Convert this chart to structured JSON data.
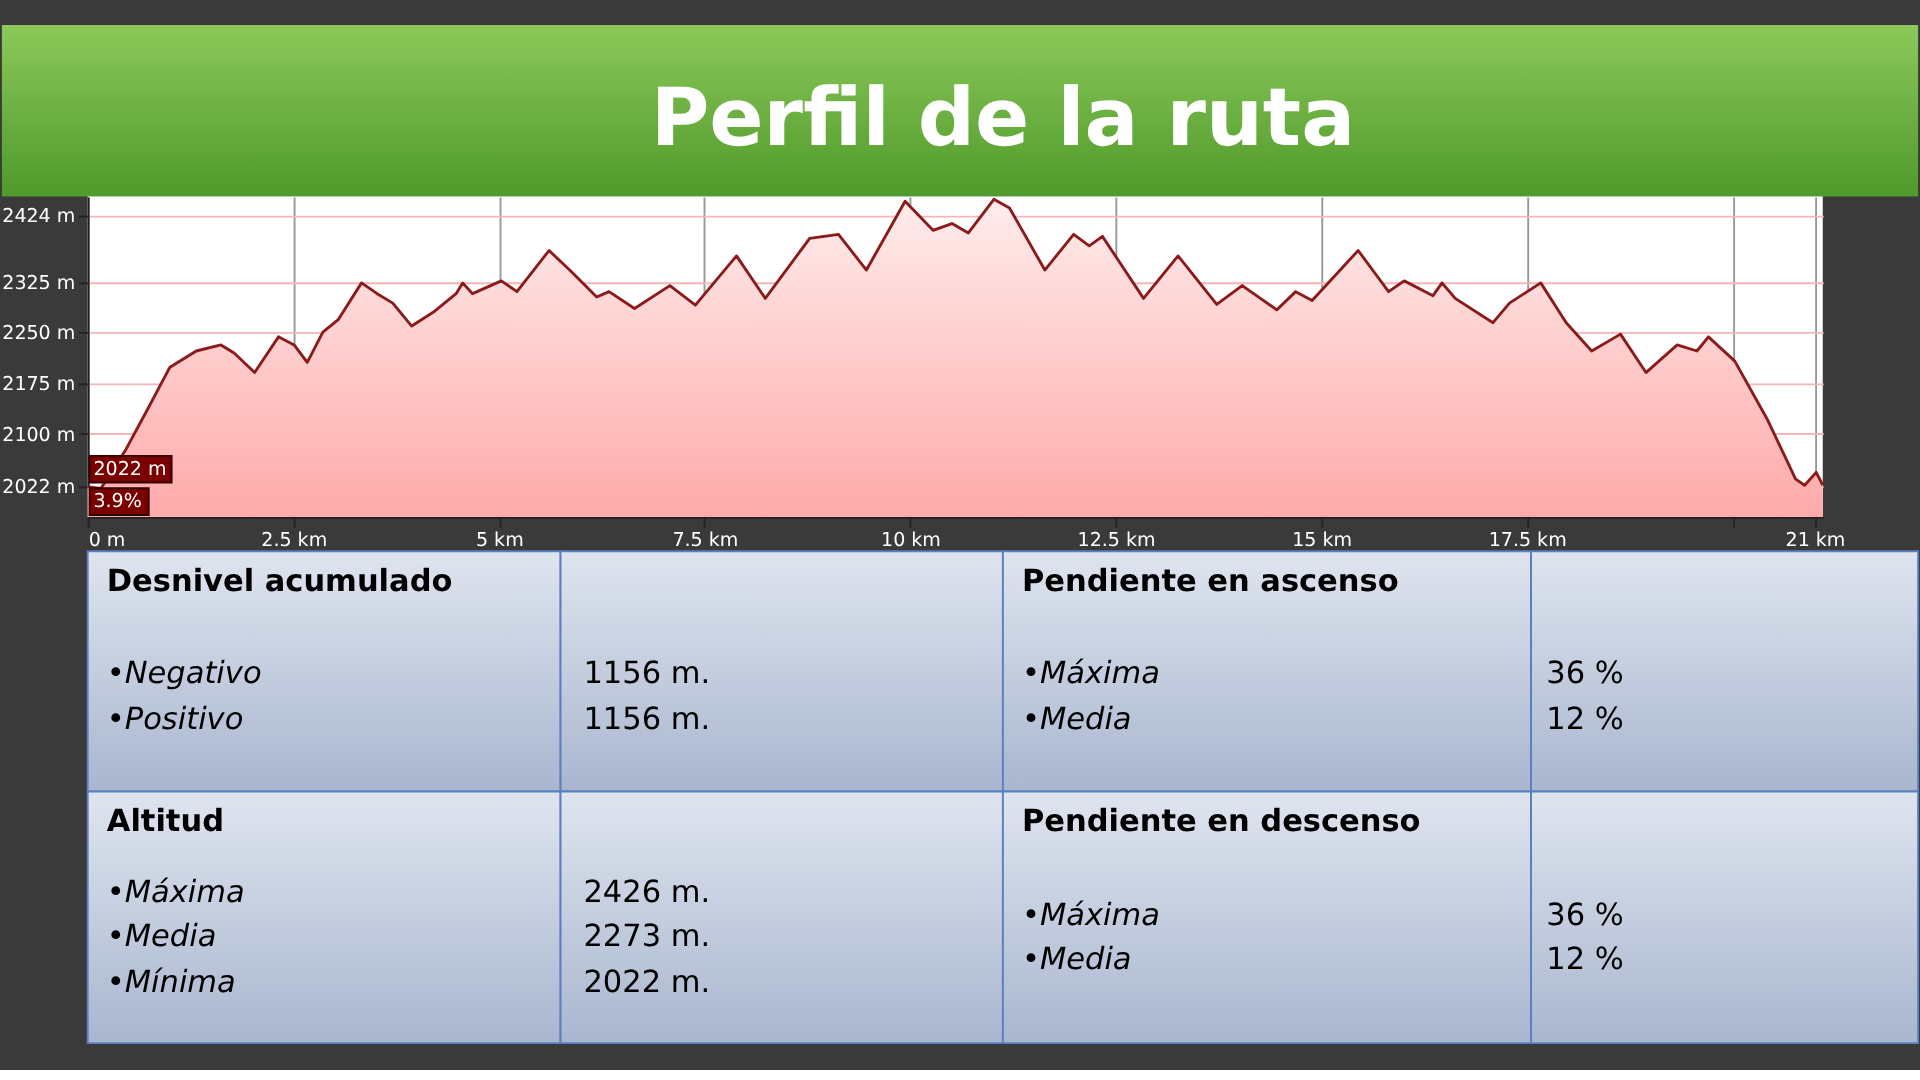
{
  "chart_data": {
    "type": "area",
    "title": "Perfil de la ruta",
    "x": [
      0,
      0.16,
      0.46,
      0.73,
      1.0,
      1.32,
      1.62,
      1.78,
      2.03,
      2.32,
      2.51,
      2.67,
      2.86,
      3.05,
      3.33,
      3.52,
      3.71,
      3.94,
      4.22,
      4.48,
      4.56,
      4.68,
      5.03,
      5.22,
      5.61,
      5.88,
      6.19,
      6.34,
      6.65,
      7.08,
      7.39,
      7.89,
      8.24,
      8.78,
      9.13,
      9.47,
      9.94,
      10.28,
      10.51,
      10.71,
      11.02,
      11.21,
      11.64,
      11.99,
      12.18,
      12.34,
      12.84,
      13.26,
      13.73,
      14.04,
      14.46,
      14.69,
      14.89,
      15.45,
      15.82,
      16.01,
      16.36,
      16.47,
      16.63,
      17.09,
      17.29,
      17.67,
      17.98,
      18.29,
      18.64,
      18.95,
      19.33,
      19.57,
      19.71,
      20.03,
      20.42,
      20.77,
      20.88,
      21.02,
      21.1
    ],
    "series": [
      {
        "color": "#8b1a1a",
        "values": [
          2022,
          2019,
          2076,
          2137,
          2199,
          2223,
          2232,
          2220,
          2191,
          2244,
          2232,
          2206,
          2251,
          2270,
          2324,
          2308,
          2294,
          2260,
          2282,
          2308,
          2324,
          2308,
          2327,
          2311,
          2372,
          2341,
          2303,
          2311,
          2286,
          2320,
          2291,
          2364,
          2301,
          2390,
          2396,
          2343,
          2445,
          2402,
          2412,
          2398,
          2448,
          2435,
          2343,
          2396,
          2379,
          2393,
          2301,
          2364,
          2292,
          2320,
          2284,
          2311,
          2298,
          2372,
          2311,
          2327,
          2305,
          2324,
          2301,
          2265,
          2294,
          2324,
          2265,
          2223,
          2248,
          2191,
          2232,
          2223,
          2244,
          2208,
          2123,
          2033,
          2024,
          2043,
          2024
        ]
      }
    ],
    "xlim": [
      0,
      21.1
    ],
    "xticks": [
      {
        "value": 0,
        "label": "0 m"
      },
      {
        "value": 2.5,
        "label": "2.5 km"
      },
      {
        "value": 5,
        "label": "5 km"
      },
      {
        "value": 7.5,
        "label": "7.5 km"
      },
      {
        "value": 10,
        "label": "10 km"
      },
      {
        "value": 12.5,
        "label": "12.5 km"
      },
      {
        "value": 15,
        "label": "15 km"
      },
      {
        "value": 17.5,
        "label": "17.5 km"
      },
      {
        "value": 20,
        "label": null
      },
      {
        "value": 21,
        "label": "21 km"
      }
    ],
    "ylim": [
      1977,
      2452
    ],
    "yticks": [
      {
        "value": 2022,
        "label": "2022 m"
      },
      {
        "value": 2100,
        "label": "2100 m"
      },
      {
        "value": 2175,
        "label": "2175 m"
      },
      {
        "value": 2250,
        "label": "2250 m"
      },
      {
        "value": 2325,
        "label": "2325 m"
      },
      {
        "value": 2424,
        "label": "2424 m"
      }
    ],
    "grid": true,
    "annotations": [
      "Desnivel acumulado",
      "•Negativo",
      "•Positivo",
      "1156 m.",
      "1156 m.",
      "Pendiente en ascenso",
      "•Máxima",
      "•Media",
      "36 %",
      "12 %",
      "Altitud",
      "•Máxima",
      "•Media",
      "•Mínima",
      "2426 m.",
      "2273 m.",
      "2022 m.",
      "Pendiente en descenso",
      "•Máxima",
      "•Media",
      "36 %",
      "12 %",
      "2022 m",
      "3.9%"
    ]
  }
}
